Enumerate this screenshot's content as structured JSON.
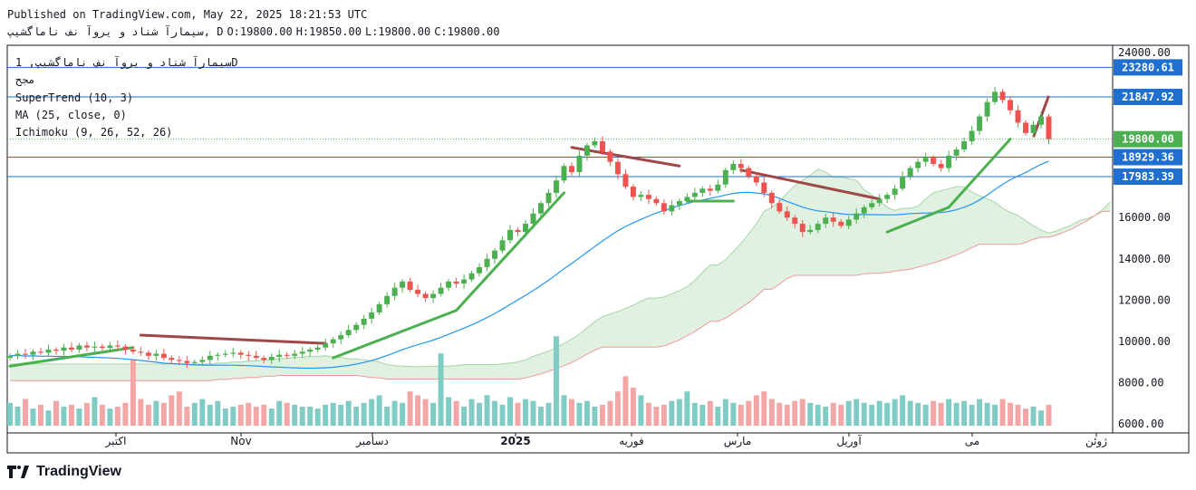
{
  "header": {
    "published": "Published on TradingView.com, May 22, 2025 18:21:53 UTC",
    "symbol_line": "سیمارآ شناد و یروآ نف ناماگشیپ, D",
    "ohlc": {
      "o": "O:19800.00",
      "h": "H:19850.00",
      "l": "L:19800.00",
      "c": "C:19800.00"
    }
  },
  "legend": {
    "title": "سیمارآ شناد و یروآ نف ناماگشیپ, 1D",
    "volume_label": "مجح",
    "supertrend": "SuperTrend (10, 3)",
    "ma": "MA (25, close, 0)",
    "ichimoku": "Ichimoku (9, 26, 52, 26)"
  },
  "branding": {
    "name": "TradingView",
    "logo_icon": "tradingview-logo-icon"
  },
  "colors": {
    "up": "#4caf50",
    "down": "#ef5350",
    "volume_up": "#80cbc4",
    "volume_down": "#f4a6a6",
    "supertrend_up": "#4caf50",
    "supertrend_down": "#a04848",
    "ma": "#2196f3",
    "hline": "#1e6fd0",
    "cloud_up": "#c8e6c9",
    "cloud_down": "#f8d0d0"
  },
  "chart_data": {
    "type": "candlestick",
    "timeframe": "1D",
    "price_axis": {
      "ticks": [
        "24000.00",
        "16000.00",
        "14000.00",
        "12000.00",
        "10000.00",
        "8000.00",
        "6000.00"
      ],
      "range": [
        6000,
        24300
      ]
    },
    "time_axis": {
      "labels": [
        "اکتبر",
        "Nov",
        "دسامبر",
        "2025",
        "فوریه",
        "مارس",
        "آوریل",
        "می",
        "ژوئن"
      ]
    },
    "horizontal_lines": [
      {
        "value": 23280.61,
        "label": "23280.61"
      },
      {
        "value": 21847.92,
        "label": "21847.92"
      },
      {
        "value": 18929.36,
        "label": "18929.36"
      },
      {
        "value": 17983.39,
        "label": "17983.39"
      }
    ],
    "last_price": {
      "value": 19800.0,
      "label": "19800.00",
      "color": "#4caf50"
    },
    "price_path": [
      9300,
      9400,
      9350,
      9500,
      9450,
      9600,
      9550,
      9700,
      9600,
      9800,
      9700,
      9750,
      9680,
      9800,
      9750,
      9600,
      9500,
      9450,
      9300,
      9400,
      9200,
      9100,
      9050,
      8950,
      9000,
      9100,
      9300,
      9350,
      9400,
      9450,
      9350,
      9300,
      9200,
      9100,
      9250,
      9350,
      9300,
      9400,
      9500,
      9600,
      9700,
      9900,
      10100,
      10300,
      10550,
      10800,
      11100,
      11400,
      11800,
      12200,
      12600,
      12900,
      12500,
      12300,
      12100,
      12300,
      12600,
      12900,
      12800,
      13000,
      13300,
      13600,
      14000,
      14400,
      14900,
      15400,
      15300,
      15700,
      16200,
      16700,
      17200,
      17800,
      18500,
      18200,
      19000,
      19500,
      19700,
      19200,
      18700,
      18100,
      17500,
      17000,
      17100,
      16900,
      16700,
      16300,
      16600,
      16800,
      17000,
      17200,
      17400,
      17300,
      17600,
      18300,
      18600,
      18400,
      18000,
      17700,
      17200,
      16700,
      16300,
      16000,
      15700,
      15300,
      15400,
      15700,
      16000,
      15800,
      15600,
      15900,
      16200,
      16500,
      16700,
      16900,
      17100,
      17400,
      18000,
      18400,
      18700,
      18900,
      18600,
      18400,
      19000,
      19300,
      19700,
      20200,
      20900,
      21600,
      22100,
      21700,
      21200,
      20600,
      20100,
      20500,
      20900,
      19800
    ],
    "supertrend": [
      {
        "bar": 0,
        "value": 8800,
        "trend": "up"
      },
      {
        "bar": 16,
        "value": 9700,
        "trend": "up"
      },
      {
        "bar": 17,
        "value": 10300,
        "trend": "down"
      },
      {
        "bar": 41,
        "value": 9900,
        "trend": "down"
      },
      {
        "bar": 42,
        "value": 9200,
        "trend": "up"
      },
      {
        "bar": 58,
        "value": 11500,
        "trend": "up"
      },
      {
        "bar": 72,
        "value": 17200,
        "trend": "up"
      },
      {
        "bar": 73,
        "value": 19400,
        "trend": "down"
      },
      {
        "bar": 87,
        "value": 18500,
        "trend": "down"
      },
      {
        "bar": 88,
        "value": 16800,
        "trend": "up"
      },
      {
        "bar": 94,
        "value": 16800,
        "trend": "up"
      },
      {
        "bar": 95,
        "value": 18300,
        "trend": "down"
      },
      {
        "bar": 113,
        "value": 16900,
        "trend": "down"
      },
      {
        "bar": 114,
        "value": 15300,
        "trend": "up"
      },
      {
        "bar": 122,
        "value": 16500,
        "trend": "up"
      },
      {
        "bar": 130,
        "value": 19800,
        "trend": "up"
      },
      {
        "bar": 134,
        "value": 21900,
        "trend": "down"
      }
    ],
    "volume": [
      7200,
      7000,
      7400,
      6900,
      7100,
      6800,
      7300,
      7000,
      7100,
      6900,
      7200,
      7500,
      7100,
      6900,
      7000,
      7200,
      9500,
      7400,
      7100,
      7300,
      7200,
      7600,
      7800,
      7000,
      7200,
      7400,
      7100,
      7300,
      6900,
      7000,
      7100,
      7200,
      7000,
      7100,
      6900,
      7300,
      7200,
      7100,
      7000,
      7000,
      6900,
      7100,
      7200,
      7100,
      7300,
      7000,
      7200,
      7400,
      7600,
      7000,
      7300,
      7200,
      7800,
      7600,
      7400,
      7200,
      9800,
      7500,
      7300,
      7000,
      7400,
      7200,
      7600,
      7300,
      7100,
      7500,
      7200,
      7400,
      7300,
      7000,
      7200,
      10700,
      7600,
      7400,
      7200,
      7300,
      7000,
      7100,
      7300,
      7800,
      8600,
      8000,
      7600,
      7200,
      7000,
      7100,
      7300,
      7400,
      7800,
      7200,
      7100,
      7300,
      7000,
      7400,
      7200,
      7100,
      7300,
      7600,
      7800,
      7400,
      7200,
      7100,
      7300,
      7400,
      7200,
      7100,
      7000,
      7200,
      7100,
      7300,
      7400,
      7200,
      7100,
      7300,
      7200,
      7400,
      7600,
      7300,
      7200,
      7100,
      7300,
      7200,
      7400,
      7200,
      7300,
      7100,
      7400,
      7200,
      7100,
      7400,
      7200,
      7100,
      6900,
      7000,
      6800,
      7100
    ],
    "ma_25_close": "smooth curve from 8800 rising to 19800",
    "ichimoku_cloud": "cloud spanning 8000 to 17900, green above red"
  }
}
